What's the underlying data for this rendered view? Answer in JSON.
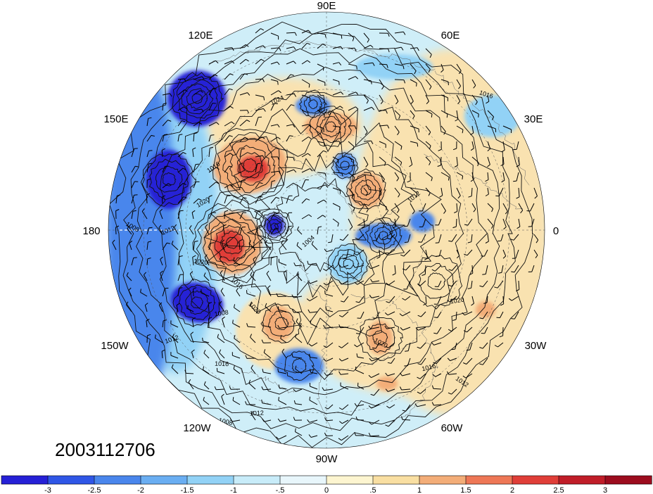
{
  "timestamp": "2003112706",
  "longitude_labels": [
    "90E",
    "60E",
    "30E",
    "0",
    "30W",
    "60W",
    "90W",
    "120W",
    "150W",
    "180",
    "150E",
    "120E"
  ],
  "isobar_labels": [
    "1008",
    "1008",
    "1008",
    "1012",
    "1012",
    "1012",
    "1012",
    "1012",
    "1012",
    "1016",
    "1016",
    "1016",
    "1016",
    "1016",
    "1016",
    "1020",
    "1020",
    "1020",
    "1020",
    "1020",
    "1024",
    "1008",
    "1004"
  ],
  "colorbar": {
    "ticks": [
      "-3",
      "-2.5",
      "-2",
      "-1.5",
      "-1",
      "-.5",
      "0",
      ".5",
      "1",
      "1.5",
      "2",
      "2.5",
      "3"
    ],
    "colors": [
      "#2520d6",
      "#2f56e6",
      "#4a86ec",
      "#6aaef2",
      "#92d2f6",
      "#c8ecf9",
      "#e8f6fb",
      "#fdf5d0",
      "#f9dfa2",
      "#f3ad78",
      "#ee7756",
      "#e03e38",
      "#c01d28",
      "#9c0c1e"
    ]
  },
  "anomaly_colors": {
    "strong_negative": "#2520d6",
    "negative": "#4a86ec",
    "weak_negative": "#92d2f6",
    "near_zero": "#d8f1f9",
    "weak_positive": "#f9e2b0",
    "positive": "#f3ad78",
    "strong_positive": "#e03e38"
  }
}
